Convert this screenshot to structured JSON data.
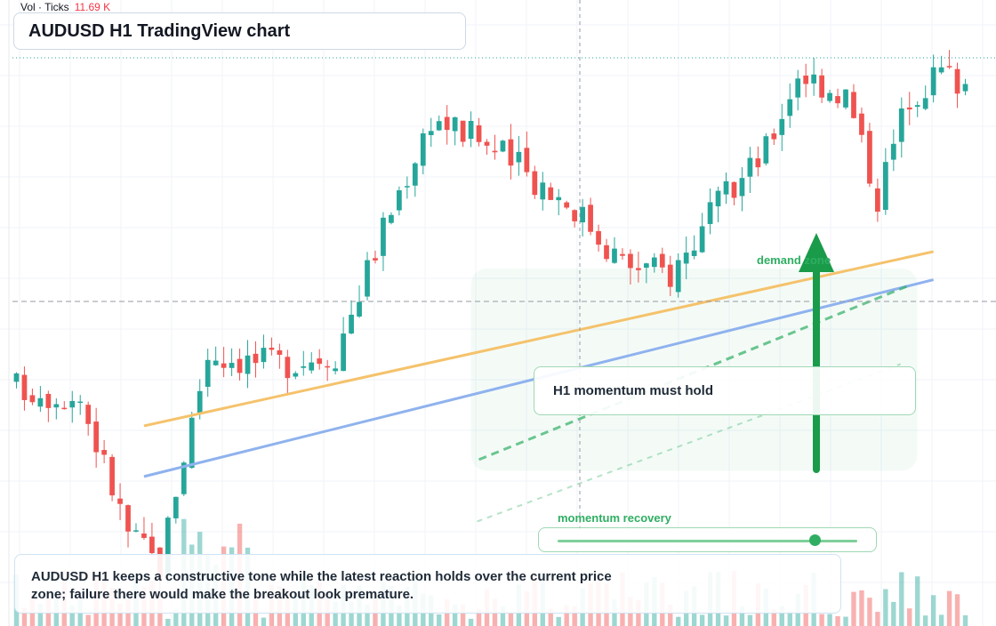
{
  "header": {
    "title": "AUDUSD H1 TradingView chart"
  },
  "volume_legend": {
    "label": "Vol · Ticks",
    "value": "11.69 K"
  },
  "annotations": {
    "demand_zone_label": "demand zone",
    "callout": "H1 momentum must hold",
    "momentum_label": "momentum recovery",
    "momentum_level": 0.86,
    "note": "AUDUSD H1 keeps a constructive tone while the latest reaction holds over the current price zone; failure there would make the breakout look premature."
  },
  "colors": {
    "bull": "#26a69a",
    "bear": "#ef5350",
    "trend_orange": "#f5c26b",
    "trend_blue": "#8fb2ee",
    "zone": "#2fae62"
  },
  "chart_data": {
    "type": "candlestick",
    "symbol": "AUDUSD",
    "timeframe": "H1",
    "y_range": [
      0,
      100
    ],
    "x_count": 120,
    "series_seed": 17,
    "crosshair": {
      "x_index": 70,
      "y_value": 49
    },
    "trendlines": [
      {
        "name": "orange",
        "from": [
          16,
          31
        ],
        "to": [
          115,
          62
        ]
      },
      {
        "name": "blue",
        "from": [
          16,
          22
        ],
        "to": [
          115,
          57
        ]
      }
    ],
    "demand_zone": {
      "x_from": 57,
      "x_to": 113,
      "y_from": 23,
      "y_to": 59
    },
    "projection": {
      "from": [
        58,
        25
      ],
      "to": [
        112,
        56
      ]
    }
  }
}
